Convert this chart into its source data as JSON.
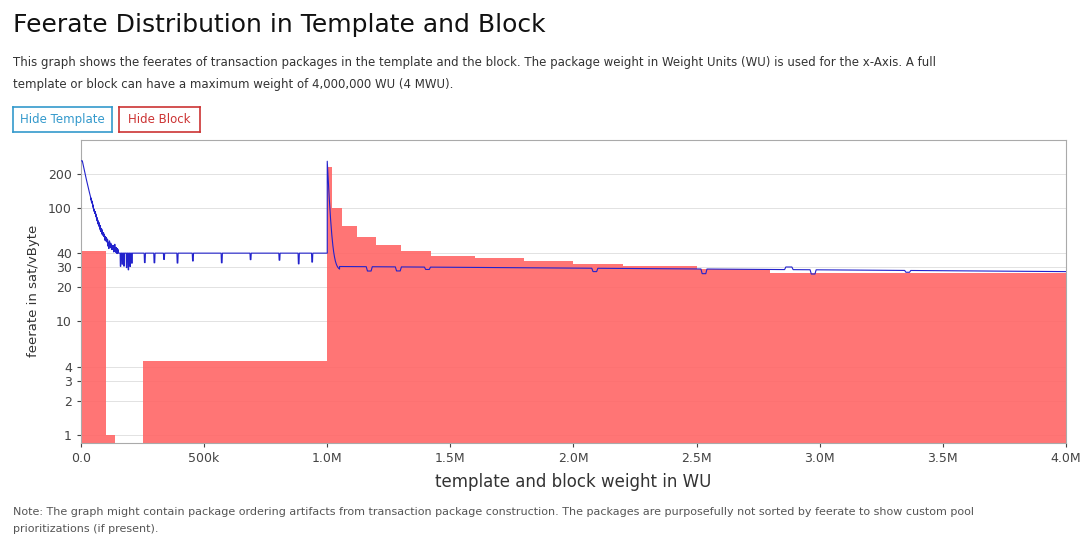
{
  "title": "Feerate Distribution in Template and Block",
  "subtitle_line1": "This graph shows the feerates of transaction packages in the template and the block. The package weight in Weight Units (WU) is used for the x-Axis. A full",
  "subtitle_line2": "template or block can have a maximum weight of 4,000,000 WU (4 MWU).",
  "xlabel": "template and block weight in WU",
  "ylabel": "feerate in sat/vByte",
  "note_line1": "Note: The graph might contain package ordering artifacts from transaction package construction. The packages are purposefully not sorted by feerate to show custom pool",
  "note_line2": "prioritizations (if present).",
  "bg_color": "#ffffff",
  "block_fill_color": "#ff6666",
  "template_line_color": "#2222cc",
  "button1_text": "Hide Template",
  "button1_border": "#3399cc",
  "button1_text_color": "#3399cc",
  "button2_text": "Hide Block",
  "button2_border": "#cc3333",
  "button2_text_color": "#cc3333",
  "yticks": [
    1,
    2,
    3,
    4,
    10,
    20,
    30,
    40,
    100,
    200
  ],
  "xtick_vals": [
    0,
    500000,
    1000000,
    1500000,
    2000000,
    2500000,
    3000000,
    3500000,
    4000000
  ],
  "xtick_labels": [
    "0.0",
    "500k",
    "1.0M",
    "1.5M",
    "2.0M",
    "2.5M",
    "3.0M",
    "3.5M",
    "4.0M"
  ]
}
